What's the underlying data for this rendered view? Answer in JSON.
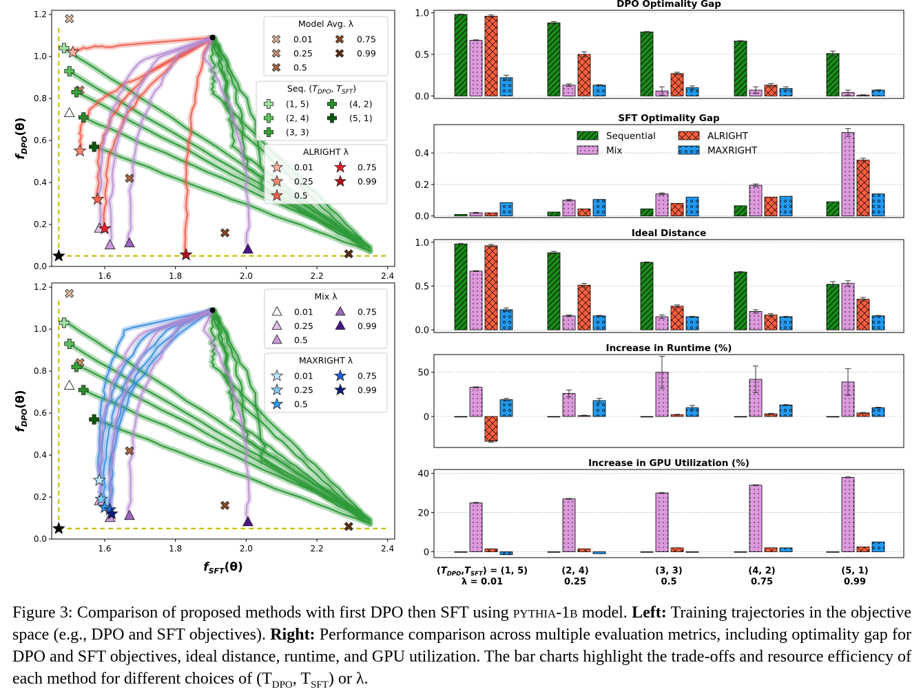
{
  "colors": {
    "sequential": "#1a8a1a",
    "mix": "#dd99dd",
    "alright": "#ff6040",
    "maxright": "#2299ee",
    "ideal": "#c8c000",
    "traj_mix": "#b488d0",
    "traj_alright": "#ee5544",
    "traj_maxright": "#3388dd",
    "traj_seq": "#2e9a3a"
  },
  "caption": {
    "lead": "Figure 3: Comparison of proposed methods with first DPO then SFT using ",
    "model": "pythia-1b",
    "mid": " model. ",
    "left_b": "Left:",
    "left_t": " Training trajectories in the objective space (e.g., DPO and SFT objectives). ",
    "right_b": "Right:",
    "right_t": " Performance comparison across multiple evaluation metrics, including optimality gap for DPO and SFT objectives, ideal distance, runtime, and GPU utilization. The bar charts highlight the trade-offs and resource efficiency of each method for different choices of (T",
    "sub1": "DPO",
    "comma": ", T",
    "sub2": "SFT",
    "end": ") or λ."
  },
  "chart_data": [
    {
      "type": "line",
      "panel": "top-left",
      "xlabel": "f_SFT(θ)",
      "ylabel": "f_DPO(θ)",
      "xlim": [
        1.45,
        2.42
      ],
      "ylim": [
        0,
        1.22
      ],
      "xticks": [
        "1.6",
        "1.8",
        "2.0",
        "2.2",
        "2.4"
      ],
      "yticks": [
        "0.0",
        "0.2",
        "0.4",
        "0.6",
        "0.8",
        "1.0",
        "1.2"
      ],
      "start_point": [
        1.905,
        1.09
      ],
      "ideal_point": [
        1.47,
        0.05
      ],
      "legends": [
        {
          "title": "Model Avg. λ",
          "entries": [
            {
              "label": "0.01",
              "marker": "x",
              "color": "#e0b89a"
            },
            {
              "label": "0.75",
              "marker": "x",
              "color": "#8a4a20"
            },
            {
              "label": "0.25",
              "marker": "x",
              "color": "#c8906a"
            },
            {
              "label": "0.99",
              "marker": "x",
              "color": "#5a2e10"
            },
            {
              "label": "0.5",
              "marker": "x",
              "color": "#a86840"
            }
          ]
        },
        {
          "title": "Seq. (T_DPO, T_SFT)",
          "entries": [
            {
              "label": "(1, 5)",
              "marker": "plus",
              "color": "#9fe09f"
            },
            {
              "label": "(4, 2)",
              "marker": "plus",
              "color": "#2a8a2a"
            },
            {
              "label": "(2, 4)",
              "marker": "plus",
              "color": "#5ec05e"
            },
            {
              "label": "(5, 1)",
              "marker": "plus",
              "color": "#0a5a0a"
            },
            {
              "label": "(3, 3)",
              "marker": "plus",
              "color": "#3aa03a"
            }
          ]
        },
        {
          "title": "ALRIGHT λ",
          "entries": [
            {
              "label": "0.01",
              "marker": "star",
              "color": "#ffb0a0"
            },
            {
              "label": "0.75",
              "marker": "star",
              "color": "#e8202a"
            },
            {
              "label": "0.25",
              "marker": "star",
              "color": "#ff8870"
            },
            {
              "label": "0.99",
              "marker": "star",
              "color": "#b0101a"
            },
            {
              "label": "0.5",
              "marker": "star",
              "color": "#ff6048"
            }
          ]
        }
      ],
      "markers": [
        {
          "marker": "x",
          "color": "#e0b89a",
          "x": 1.5,
          "y": 1.18
        },
        {
          "marker": "x",
          "color": "#c8906a",
          "x": 1.53,
          "y": 0.84
        },
        {
          "marker": "x",
          "color": "#a86840",
          "x": 1.67,
          "y": 0.42
        },
        {
          "marker": "x",
          "color": "#8a4a20",
          "x": 1.94,
          "y": 0.16
        },
        {
          "marker": "x",
          "color": "#5a2e10",
          "x": 2.29,
          "y": 0.06
        },
        {
          "marker": "plus",
          "color": "#9fe09f",
          "x": 1.485,
          "y": 1.04
        },
        {
          "marker": "plus",
          "color": "#5ec05e",
          "x": 1.5,
          "y": 0.93
        },
        {
          "marker": "plus",
          "color": "#3aa03a",
          "x": 1.52,
          "y": 0.83
        },
        {
          "marker": "plus",
          "color": "#2a8a2a",
          "x": 1.54,
          "y": 0.71
        },
        {
          "marker": "plus",
          "color": "#0a5a0a",
          "x": 1.57,
          "y": 0.57
        },
        {
          "marker": "tri",
          "color": "#ffffff",
          "x": 1.5,
          "y": 0.73
        },
        {
          "marker": "tri",
          "color": "#e0c0e8",
          "x": 1.585,
          "y": 0.18
        },
        {
          "marker": "tri",
          "color": "#cc99dd",
          "x": 1.615,
          "y": 0.1
        },
        {
          "marker": "tri",
          "color": "#9a66bb",
          "x": 1.67,
          "y": 0.11
        },
        {
          "marker": "tri",
          "color": "#4a148a",
          "x": 2.005,
          "y": 0.08
        },
        {
          "marker": "star",
          "color": "#ffb0a0",
          "x": 1.51,
          "y": 1.02
        },
        {
          "marker": "star",
          "color": "#ff8870",
          "x": 1.53,
          "y": 0.55
        },
        {
          "marker": "star",
          "color": "#ff6048",
          "x": 1.58,
          "y": 0.32
        },
        {
          "marker": "star",
          "color": "#e8202a",
          "x": 1.6,
          "y": 0.18
        },
        {
          "marker": "star",
          "color": "#b0101a",
          "x": 1.83,
          "y": 0.055
        }
      ]
    },
    {
      "type": "line",
      "panel": "bottom-left",
      "xlabel": "f_SFT(θ)",
      "ylabel": "f_DPO(θ)",
      "xlim": [
        1.45,
        2.42
      ],
      "ylim": [
        0,
        1.22
      ],
      "xticks": [
        "1.6",
        "1.8",
        "2.0",
        "2.2",
        "2.4"
      ],
      "yticks": [
        "0.0",
        "0.2",
        "0.4",
        "0.6",
        "0.8",
        "1.0",
        "1.2"
      ],
      "start_point": [
        1.905,
        1.09
      ],
      "ideal_point": [
        1.47,
        0.05
      ],
      "legends": [
        {
          "title": "Mix λ",
          "entries": [
            {
              "label": "0.01",
              "marker": "tri",
              "color": "#ffffff"
            },
            {
              "label": "0.75",
              "marker": "tri",
              "color": "#9a66bb"
            },
            {
              "label": "0.25",
              "marker": "tri",
              "color": "#e0c0e8"
            },
            {
              "label": "0.99",
              "marker": "tri",
              "color": "#4a148a"
            },
            {
              "label": "0.5",
              "marker": "tri",
              "color": "#cc99dd"
            }
          ]
        },
        {
          "title": "MAXRIGHT λ",
          "entries": [
            {
              "label": "0.01",
              "marker": "star",
              "color": "#bfe6ff"
            },
            {
              "label": "0.75",
              "marker": "star",
              "color": "#2060d0"
            },
            {
              "label": "0.25",
              "marker": "star",
              "color": "#80c8f8"
            },
            {
              "label": "0.99",
              "marker": "star",
              "color": "#0a1a7a"
            },
            {
              "label": "0.5",
              "marker": "star",
              "color": "#3399ee"
            }
          ]
        }
      ],
      "markers": [
        {
          "marker": "x",
          "color": "#e0b89a",
          "x": 1.5,
          "y": 1.17
        },
        {
          "marker": "x",
          "color": "#c8906a",
          "x": 1.53,
          "y": 0.84
        },
        {
          "marker": "x",
          "color": "#a86840",
          "x": 1.67,
          "y": 0.42
        },
        {
          "marker": "x",
          "color": "#8a4a20",
          "x": 1.94,
          "y": 0.16
        },
        {
          "marker": "x",
          "color": "#5a2e10",
          "x": 2.29,
          "y": 0.06
        },
        {
          "marker": "plus",
          "color": "#9fe09f",
          "x": 1.485,
          "y": 1.03
        },
        {
          "marker": "plus",
          "color": "#5ec05e",
          "x": 1.5,
          "y": 0.93
        },
        {
          "marker": "plus",
          "color": "#3aa03a",
          "x": 1.52,
          "y": 0.82
        },
        {
          "marker": "plus",
          "color": "#2a8a2a",
          "x": 1.54,
          "y": 0.71
        },
        {
          "marker": "plus",
          "color": "#0a5a0a",
          "x": 1.57,
          "y": 0.57
        },
        {
          "marker": "tri",
          "color": "#ffffff",
          "x": 1.5,
          "y": 0.73
        },
        {
          "marker": "tri",
          "color": "#e0c0e8",
          "x": 1.585,
          "y": 0.18
        },
        {
          "marker": "tri",
          "color": "#cc99dd",
          "x": 1.615,
          "y": 0.1
        },
        {
          "marker": "tri",
          "color": "#9a66bb",
          "x": 1.67,
          "y": 0.11
        },
        {
          "marker": "tri",
          "color": "#4a148a",
          "x": 2.005,
          "y": 0.08
        },
        {
          "marker": "star",
          "color": "#bfe6ff",
          "x": 1.585,
          "y": 0.28
        },
        {
          "marker": "star",
          "color": "#80c8f8",
          "x": 1.59,
          "y": 0.19
        },
        {
          "marker": "star",
          "color": "#3399ee",
          "x": 1.6,
          "y": 0.15
        },
        {
          "marker": "star",
          "color": "#2060d0",
          "x": 1.615,
          "y": 0.14
        },
        {
          "marker": "star",
          "color": "#0a1a7a",
          "x": 1.62,
          "y": 0.12
        }
      ]
    },
    {
      "type": "bar",
      "group_labels": [
        [
          "(T_DPO,T_SFT) = (1, 5)",
          "λ = 0.01"
        ],
        [
          "(2, 4)",
          "0.25"
        ],
        [
          "(3, 3)",
          "0.5"
        ],
        [
          "(4, 2)",
          "0.75"
        ],
        [
          "(5, 1)",
          "0.99"
        ]
      ],
      "legend": [
        {
          "label": "Sequential",
          "method": "sequential"
        },
        {
          "label": "ALRIGHT",
          "method": "alright"
        },
        {
          "label": "Mix",
          "method": "mix"
        },
        {
          "label": "MAXRIGHT",
          "method": "maxright"
        }
      ],
      "methods": [
        "sequential",
        "mix",
        "alright",
        "maxright"
      ],
      "panels": [
        {
          "title": "DPO Optimality Gap",
          "ylim": [
            -0.03,
            1.03
          ],
          "yticks": [
            "0.0",
            "0.5",
            "1.0"
          ],
          "series": [
            {
              "name": "Sequential",
              "values": [
                0.98,
                0.88,
                0.77,
                0.66,
                0.51
              ],
              "err": [
                0.005,
                0.015,
                0.005,
                0.005,
                0.03
              ]
            },
            {
              "name": "Mix",
              "values": [
                0.67,
                0.13,
                0.06,
                0.07,
                0.04
              ],
              "err": [
                0.005,
                0.015,
                0.05,
                0.04,
                0.03
              ]
            },
            {
              "name": "ALRIGHT",
              "values": [
                0.96,
                0.5,
                0.27,
                0.13,
                0.01
              ],
              "err": [
                0.015,
                0.03,
                0.015,
                0.02,
                0.005
              ]
            },
            {
              "name": "MAXRIGHT",
              "values": [
                0.22,
                0.13,
                0.1,
                0.09,
                0.07
              ],
              "err": [
                0.03,
                0.005,
                0.02,
                0.02,
                0.005
              ]
            }
          ]
        },
        {
          "title": "SFT Optimality Gap",
          "ylim": [
            -0.01,
            0.58
          ],
          "yticks": [
            "0.0",
            "0.2",
            "0.4"
          ],
          "series": [
            {
              "name": "Sequential",
              "values": [
                0.01,
                0.025,
                0.045,
                0.065,
                0.09
              ],
              "err": [
                0,
                0,
                0,
                0,
                0
              ]
            },
            {
              "name": "Mix",
              "values": [
                0.02,
                0.1,
                0.14,
                0.195,
                0.53
              ],
              "err": [
                0.003,
                0.005,
                0.006,
                0.008,
                0.025
              ]
            },
            {
              "name": "ALRIGHT",
              "values": [
                0.02,
                0.045,
                0.08,
                0.12,
                0.355
              ],
              "err": [
                0,
                0,
                0,
                0,
                0.012
              ]
            },
            {
              "name": "MAXRIGHT",
              "values": [
                0.085,
                0.105,
                0.12,
                0.125,
                0.14
              ],
              "err": [
                0,
                0,
                0,
                0,
                0
              ]
            }
          ]
        },
        {
          "title": "Ideal Distance",
          "ylim": [
            -0.03,
            1.03
          ],
          "yticks": [
            "0.0",
            "0.5",
            "1.0"
          ],
          "series": [
            {
              "name": "Sequential",
              "values": [
                0.98,
                0.88,
                0.77,
                0.66,
                0.52
              ],
              "err": [
                0.005,
                0.015,
                0.005,
                0.005,
                0.03
              ]
            },
            {
              "name": "Mix",
              "values": [
                0.67,
                0.16,
                0.15,
                0.21,
                0.53
              ],
              "err": [
                0.005,
                0.01,
                0.02,
                0.02,
                0.03
              ]
            },
            {
              "name": "ALRIGHT",
              "values": [
                0.96,
                0.51,
                0.27,
                0.17,
                0.35
              ],
              "err": [
                0.015,
                0.02,
                0.015,
                0.015,
                0.02
              ]
            },
            {
              "name": "MAXRIGHT",
              "values": [
                0.23,
                0.16,
                0.15,
                0.15,
                0.16
              ],
              "err": [
                0.02,
                0.005,
                0.005,
                0.005,
                0.005
              ]
            }
          ]
        },
        {
          "title": "Increase in Runtime (%)",
          "ylim": [
            -35,
            70
          ],
          "yticks": [
            "0",
            "50"
          ],
          "series": [
            {
              "name": "Sequential",
              "values": [
                0,
                0,
                0,
                0,
                0
              ],
              "err": [
                0,
                0,
                0,
                0,
                0
              ]
            },
            {
              "name": "Mix",
              "values": [
                33,
                26,
                50,
                42,
                39
              ],
              "err": [
                0.5,
                4,
                18,
                15,
                15
              ]
            },
            {
              "name": "ALRIGHT",
              "values": [
                -28,
                1,
                2,
                3,
                4
              ],
              "err": [
                1,
                0.5,
                0.5,
                0.5,
                0.5
              ]
            },
            {
              "name": "MAXRIGHT",
              "values": [
                19,
                18,
                10,
                13,
                10
              ],
              "err": [
                1.5,
                2.5,
                2.5,
                0.5,
                0.5
              ]
            }
          ]
        },
        {
          "title": "Increase in GPU Utilization (%)",
          "ylim": [
            -3,
            42
          ],
          "yticks": [
            "0",
            "20",
            "40"
          ],
          "series": [
            {
              "name": "Sequential",
              "values": [
                0,
                0,
                0,
                0,
                0
              ],
              "err": [
                0,
                0,
                0,
                0,
                0
              ]
            },
            {
              "name": "Mix",
              "values": [
                25,
                27,
                30,
                34,
                38
              ],
              "err": [
                0.2,
                0.2,
                0.2,
                0.2,
                0.2
              ]
            },
            {
              "name": "ALRIGHT",
              "values": [
                1.5,
                1.5,
                2,
                2,
                2.5
              ],
              "err": [
                0,
                0,
                0,
                0,
                0
              ]
            },
            {
              "name": "MAXRIGHT",
              "values": [
                -1.5,
                -1,
                0,
                2,
                5
              ],
              "err": [
                0,
                0,
                0,
                0,
                0
              ]
            }
          ]
        }
      ]
    }
  ]
}
